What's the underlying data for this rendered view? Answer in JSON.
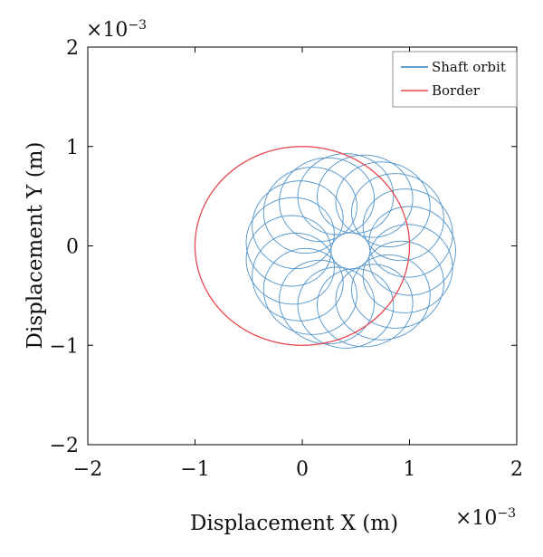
{
  "chart_data": {
    "type": "line",
    "title": "",
    "xlabel": "Displacement X (m)",
    "ylabel": "Displacement Y (m)",
    "x_multiplier": "×10",
    "x_multiplier_exp": "−3",
    "y_multiplier": "×10",
    "y_multiplier_exp": "−3",
    "xlim": [
      -0.002,
      0.002
    ],
    "ylim": [
      -0.002,
      0.002
    ],
    "xticks": [
      -0.002,
      -0.001,
      0,
      0.001,
      0.002
    ],
    "yticks": [
      -0.002,
      -0.001,
      0,
      0.001,
      0.002
    ],
    "xtick_labels": [
      "−2",
      "−1",
      "0",
      "1",
      "2"
    ],
    "ytick_labels": [
      "−2",
      "−1",
      "0",
      "1",
      "2"
    ],
    "grid": false,
    "legend_position": "top-right",
    "series": [
      {
        "name": "Shaft orbit",
        "color": "#2f7fc1",
        "kind": "epicyclic orbit",
        "center": [
          0.00045,
          -5e-05
        ],
        "primary_radius": 0.00058,
        "secondary_radius": 0.0004,
        "secondary_rate": 20,
        "points": [
          [
            0.00143,
            -5e-05
          ],
          [
            0.00045,
            0.00093
          ],
          [
            -0.00053,
            -5e-05
          ],
          [
            0.00045,
            -0.00103
          ],
          [
            -0.00013,
            0.00095
          ],
          [
            -0.00101,
            -0.00011
          ],
          [
            0.00086,
            -0.00093
          ],
          [
            0.00134,
            0.00043
          ],
          [
            -0.00112,
            0.00045
          ],
          [
            0.00098,
            0.00087
          ]
        ]
      },
      {
        "name": "Border",
        "color": "#e8474f",
        "kind": "circle",
        "center": [
          0,
          0
        ],
        "radius": 0.001
      }
    ]
  }
}
